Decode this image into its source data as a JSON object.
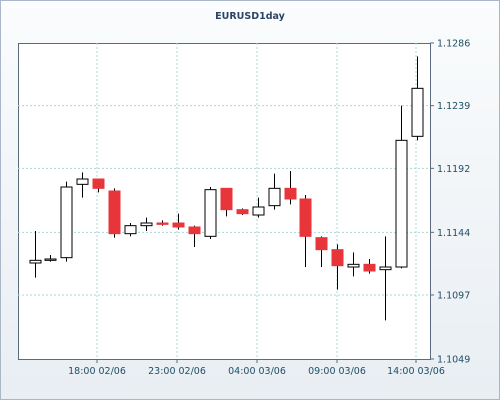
{
  "chart_data": {
    "type": "candlestick",
    "title": "EURUSD1day",
    "x_tick_labels": [
      "18:00 02/06",
      "23:00 02/06",
      "04:00 03/06",
      "09:00 03/06",
      "14:00 03/06"
    ],
    "y_tick_labels": [
      "1.1286",
      "1.1239",
      "1.1192",
      "1.1144",
      "1.1097",
      "1.1049"
    ],
    "ylim": [
      1.1049,
      1.1286
    ],
    "grid": true,
    "colors": {
      "up": "#ffffff",
      "down": "#e8353a",
      "outline": "#000000",
      "grid": "#a8d8d8"
    },
    "candles": [
      {
        "open": 1.1121,
        "high": 1.1145,
        "low": 1.111,
        "close": 1.1123
      },
      {
        "open": 1.1123,
        "high": 1.1127,
        "low": 1.1122,
        "close": 1.1124
      },
      {
        "open": 1.1125,
        "high": 1.1182,
        "low": 1.1122,
        "close": 1.1178
      },
      {
        "open": 1.118,
        "high": 1.1189,
        "low": 1.117,
        "close": 1.1184
      },
      {
        "open": 1.1184,
        "high": 1.1184,
        "low": 1.1174,
        "close": 1.1177
      },
      {
        "open": 1.1175,
        "high": 1.1177,
        "low": 1.114,
        "close": 1.1143
      },
      {
        "open": 1.1143,
        "high": 1.1151,
        "low": 1.1141,
        "close": 1.1149
      },
      {
        "open": 1.1149,
        "high": 1.1155,
        "low": 1.1145,
        "close": 1.1151
      },
      {
        "open": 1.1151,
        "high": 1.1153,
        "low": 1.1149,
        "close": 1.115
      },
      {
        "open": 1.1151,
        "high": 1.1158,
        "low": 1.1146,
        "close": 1.1148
      },
      {
        "open": 1.1148,
        "high": 1.1149,
        "low": 1.1133,
        "close": 1.1143
      },
      {
        "open": 1.1141,
        "high": 1.1178,
        "low": 1.1139,
        "close": 1.1176
      },
      {
        "open": 1.1177,
        "high": 1.1177,
        "low": 1.1156,
        "close": 1.1161
      },
      {
        "open": 1.1161,
        "high": 1.1162,
        "low": 1.1157,
        "close": 1.1158
      },
      {
        "open": 1.1157,
        "high": 1.117,
        "low": 1.1155,
        "close": 1.1163
      },
      {
        "open": 1.1164,
        "high": 1.1188,
        "low": 1.1161,
        "close": 1.1177
      },
      {
        "open": 1.1177,
        "high": 1.119,
        "low": 1.1165,
        "close": 1.1169
      },
      {
        "open": 1.1169,
        "high": 1.1172,
        "low": 1.1118,
        "close": 1.1141
      },
      {
        "open": 1.114,
        "high": 1.1141,
        "low": 1.1118,
        "close": 1.1131
      },
      {
        "open": 1.1131,
        "high": 1.1135,
        "low": 1.1101,
        "close": 1.1119
      },
      {
        "open": 1.1118,
        "high": 1.1129,
        "low": 1.1111,
        "close": 1.112
      },
      {
        "open": 1.112,
        "high": 1.1124,
        "low": 1.1113,
        "close": 1.1115
      },
      {
        "open": 1.1116,
        "high": 1.1141,
        "low": 1.1078,
        "close": 1.1118
      },
      {
        "open": 1.1118,
        "high": 1.1239,
        "low": 1.1117,
        "close": 1.1213
      },
      {
        "open": 1.1216,
        "high": 1.1276,
        "low": 1.1213,
        "close": 1.1252
      }
    ]
  }
}
